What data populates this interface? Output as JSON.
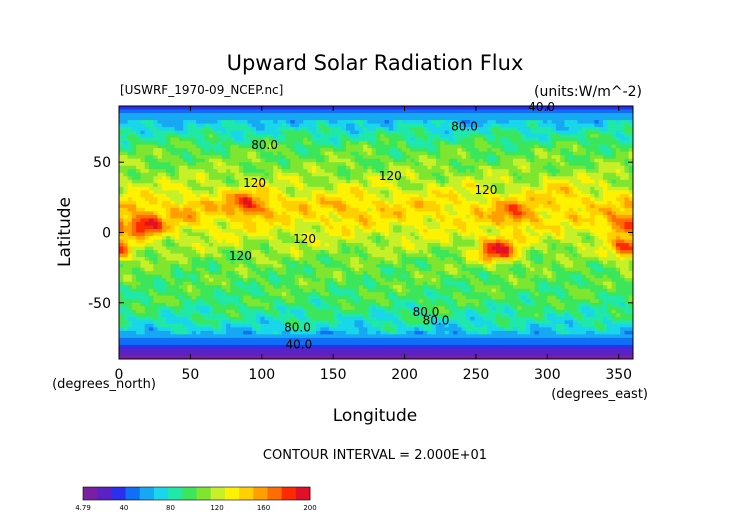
{
  "chart_data": {
    "type": "heatmap",
    "title": "Upward Solar Radiation Flux",
    "file_label": "[USWRF_1970-09_NCEP.nc]",
    "units_label": "(units:W/m^-2)",
    "xlabel": "Longitude",
    "ylabel": "Latitude",
    "x_unit_label": "(degrees_east)",
    "y_unit_label": "(degrees_north)",
    "xlim": [
      0,
      360
    ],
    "ylim": [
      -90,
      90
    ],
    "x_ticks": [
      0,
      50,
      100,
      150,
      200,
      250,
      300,
      350
    ],
    "y_ticks": [
      -50,
      0,
      50
    ],
    "contour_interval_text": "CONTOUR INTERVAL = 2.000E+01",
    "contour_labels": [
      {
        "text": "40.0",
        "lon": 296,
        "lat": 89
      },
      {
        "text": "80.0",
        "lon": 242,
        "lat": 75
      },
      {
        "text": "80.0",
        "lon": 102,
        "lat": 62
      },
      {
        "text": "120",
        "lon": 190,
        "lat": 40
      },
      {
        "text": "120",
        "lon": 257,
        "lat": 30
      },
      {
        "text": "120",
        "lon": 95,
        "lat": 35
      },
      {
        "text": "120",
        "lon": 130,
        "lat": -5
      },
      {
        "text": "120",
        "lon": 85,
        "lat": -17
      },
      {
        "text": "80.0",
        "lon": 215,
        "lat": -57
      },
      {
        "text": "80.0",
        "lon": 222,
        "lat": -63
      },
      {
        "text": "80.0",
        "lon": 125,
        "lat": -68
      },
      {
        "text": "40.0",
        "lon": 126,
        "lat": -80
      }
    ],
    "zonal_profile": [
      {
        "lat": 90,
        "value": 30
      },
      {
        "lat": 84,
        "value": 55
      },
      {
        "lat": 78,
        "value": 70
      },
      {
        "lat": 70,
        "value": 85
      },
      {
        "lat": 60,
        "value": 100
      },
      {
        "lat": 45,
        "value": 110
      },
      {
        "lat": 30,
        "value": 125
      },
      {
        "lat": 20,
        "value": 140
      },
      {
        "lat": 10,
        "value": 135
      },
      {
        "lat": 0,
        "value": 125
      },
      {
        "lat": -10,
        "value": 115
      },
      {
        "lat": -20,
        "value": 105
      },
      {
        "lat": -35,
        "value": 100
      },
      {
        "lat": -50,
        "value": 95
      },
      {
        "lat": -60,
        "value": 85
      },
      {
        "lat": -68,
        "value": 75
      },
      {
        "lat": -75,
        "value": 55
      },
      {
        "lat": -82,
        "value": 35
      },
      {
        "lat": -90,
        "value": 8
      }
    ],
    "hotspots": [
      {
        "lon": 18,
        "lat": 5,
        "value": 190
      },
      {
        "lon": 90,
        "lat": 20,
        "value": 185
      },
      {
        "lon": 265,
        "lat": -13,
        "value": 190
      },
      {
        "lon": 278,
        "lat": 12,
        "value": 170
      },
      {
        "lon": 355,
        "lat": 5,
        "value": 180
      },
      {
        "lon": 357,
        "lat": -12,
        "value": 175
      },
      {
        "lon": 160,
        "lat": 15,
        "value": 150
      },
      {
        "lon": 45,
        "lat": 12,
        "value": 150
      },
      {
        "lon": 310,
        "lat": 30,
        "value": 140
      }
    ],
    "colorbar": {
      "min": 4.79,
      "max": 200,
      "tick_labels": [
        "4.79",
        "40",
        "80",
        "120",
        "160",
        "200"
      ],
      "colors": [
        "#7a1fa2",
        "#5a22c4",
        "#2a30ec",
        "#0f6ff6",
        "#16a8f2",
        "#19d6ea",
        "#1fe8a8",
        "#3ce65a",
        "#7fe630",
        "#c8f028",
        "#fff200",
        "#ffd000",
        "#ffa000",
        "#ff6d00",
        "#ff2a00",
        "#e0102a"
      ]
    }
  }
}
